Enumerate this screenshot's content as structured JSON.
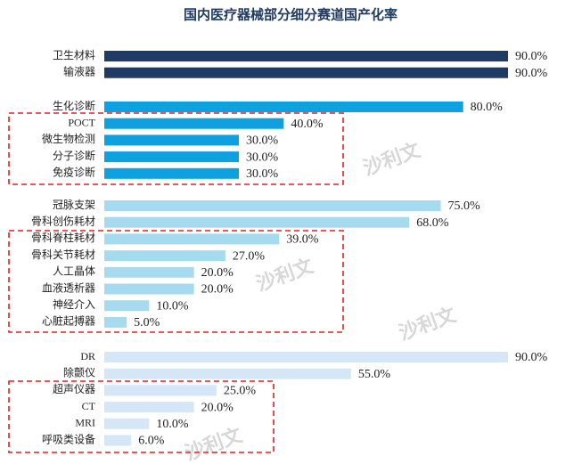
{
  "chart_data": {
    "type": "bar",
    "orientation": "horizontal",
    "title": "国内医疗器械部分细分赛道国产化率",
    "watermark": "沙利文",
    "groups": [
      {
        "color": "#1f3b63",
        "categories": [
          "卫生材料",
          "输液器"
        ],
        "values": [
          90,
          90
        ],
        "value_labels": [
          "90.0%",
          "90.0%"
        ]
      },
      {
        "color": "#0fa0df",
        "categories": [
          "生化诊断",
          "POCT",
          "微生物检测",
          "分子诊断",
          "免疫诊断"
        ],
        "values": [
          80,
          40,
          30,
          30,
          30
        ],
        "value_labels": [
          "80.0%",
          "40.0%",
          "30.0%",
          "30.0%",
          "30.0%"
        ]
      },
      {
        "color": "#a6dbef",
        "categories": [
          "冠脉支架",
          "骨科创伤耗材",
          "骨科脊柱耗材",
          "骨科关节耗材",
          "人工晶体",
          "血液透析器",
          "神经介入",
          "心脏起搏器"
        ],
        "values": [
          75,
          68,
          39,
          27,
          20,
          20,
          10,
          5
        ],
        "value_labels": [
          "75.0%",
          "68.0%",
          "39.0%",
          "27.0%",
          "20.0%",
          "20.0%",
          "10.0%",
          "5.0%"
        ]
      },
      {
        "color": "#d5e7f7",
        "categories": [
          "DR",
          "除颤仪",
          "超声仪器",
          "CT",
          "MRI",
          "呼吸类设备"
        ],
        "values": [
          90,
          55,
          25,
          20,
          10,
          6
        ],
        "value_labels": [
          "90.0%",
          "55.0%",
          "25.0%",
          "20.0%",
          "10.0%",
          "6.0%"
        ]
      }
    ]
  }
}
